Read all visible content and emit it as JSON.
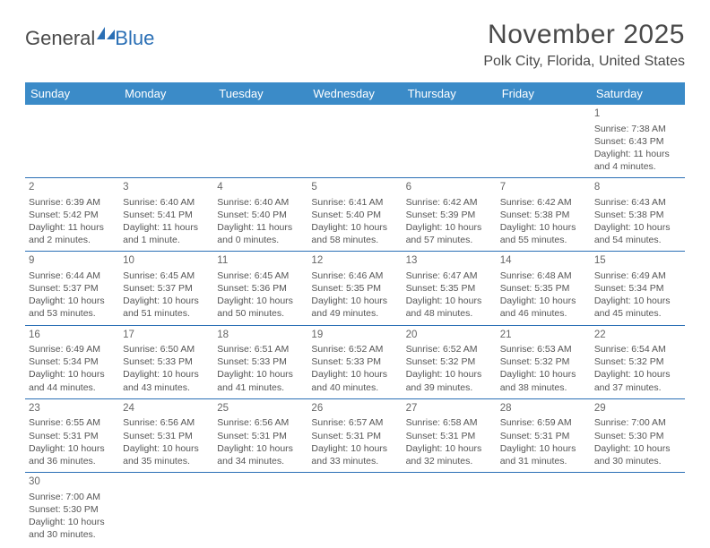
{
  "logo": {
    "text_a": "General",
    "text_b": "Blue"
  },
  "header": {
    "month_title": "November 2025",
    "location": "Polk City, Florida, United States"
  },
  "colors": {
    "header_bg": "#3b8bc8",
    "header_text": "#ffffff",
    "rule": "#2a6fb5",
    "body_text": "#555555"
  },
  "weekdays": [
    "Sunday",
    "Monday",
    "Tuesday",
    "Wednesday",
    "Thursday",
    "Friday",
    "Saturday"
  ],
  "days": {
    "1": {
      "sunrise": "Sunrise: 7:38 AM",
      "sunset": "Sunset: 6:43 PM",
      "day1": "Daylight: 11 hours",
      "day2": "and 4 minutes."
    },
    "2": {
      "sunrise": "Sunrise: 6:39 AM",
      "sunset": "Sunset: 5:42 PM",
      "day1": "Daylight: 11 hours",
      "day2": "and 2 minutes."
    },
    "3": {
      "sunrise": "Sunrise: 6:40 AM",
      "sunset": "Sunset: 5:41 PM",
      "day1": "Daylight: 11 hours",
      "day2": "and 1 minute."
    },
    "4": {
      "sunrise": "Sunrise: 6:40 AM",
      "sunset": "Sunset: 5:40 PM",
      "day1": "Daylight: 11 hours",
      "day2": "and 0 minutes."
    },
    "5": {
      "sunrise": "Sunrise: 6:41 AM",
      "sunset": "Sunset: 5:40 PM",
      "day1": "Daylight: 10 hours",
      "day2": "and 58 minutes."
    },
    "6": {
      "sunrise": "Sunrise: 6:42 AM",
      "sunset": "Sunset: 5:39 PM",
      "day1": "Daylight: 10 hours",
      "day2": "and 57 minutes."
    },
    "7": {
      "sunrise": "Sunrise: 6:42 AM",
      "sunset": "Sunset: 5:38 PM",
      "day1": "Daylight: 10 hours",
      "day2": "and 55 minutes."
    },
    "8": {
      "sunrise": "Sunrise: 6:43 AM",
      "sunset": "Sunset: 5:38 PM",
      "day1": "Daylight: 10 hours",
      "day2": "and 54 minutes."
    },
    "9": {
      "sunrise": "Sunrise: 6:44 AM",
      "sunset": "Sunset: 5:37 PM",
      "day1": "Daylight: 10 hours",
      "day2": "and 53 minutes."
    },
    "10": {
      "sunrise": "Sunrise: 6:45 AM",
      "sunset": "Sunset: 5:37 PM",
      "day1": "Daylight: 10 hours",
      "day2": "and 51 minutes."
    },
    "11": {
      "sunrise": "Sunrise: 6:45 AM",
      "sunset": "Sunset: 5:36 PM",
      "day1": "Daylight: 10 hours",
      "day2": "and 50 minutes."
    },
    "12": {
      "sunrise": "Sunrise: 6:46 AM",
      "sunset": "Sunset: 5:35 PM",
      "day1": "Daylight: 10 hours",
      "day2": "and 49 minutes."
    },
    "13": {
      "sunrise": "Sunrise: 6:47 AM",
      "sunset": "Sunset: 5:35 PM",
      "day1": "Daylight: 10 hours",
      "day2": "and 48 minutes."
    },
    "14": {
      "sunrise": "Sunrise: 6:48 AM",
      "sunset": "Sunset: 5:35 PM",
      "day1": "Daylight: 10 hours",
      "day2": "and 46 minutes."
    },
    "15": {
      "sunrise": "Sunrise: 6:49 AM",
      "sunset": "Sunset: 5:34 PM",
      "day1": "Daylight: 10 hours",
      "day2": "and 45 minutes."
    },
    "16": {
      "sunrise": "Sunrise: 6:49 AM",
      "sunset": "Sunset: 5:34 PM",
      "day1": "Daylight: 10 hours",
      "day2": "and 44 minutes."
    },
    "17": {
      "sunrise": "Sunrise: 6:50 AM",
      "sunset": "Sunset: 5:33 PM",
      "day1": "Daylight: 10 hours",
      "day2": "and 43 minutes."
    },
    "18": {
      "sunrise": "Sunrise: 6:51 AM",
      "sunset": "Sunset: 5:33 PM",
      "day1": "Daylight: 10 hours",
      "day2": "and 41 minutes."
    },
    "19": {
      "sunrise": "Sunrise: 6:52 AM",
      "sunset": "Sunset: 5:33 PM",
      "day1": "Daylight: 10 hours",
      "day2": "and 40 minutes."
    },
    "20": {
      "sunrise": "Sunrise: 6:52 AM",
      "sunset": "Sunset: 5:32 PM",
      "day1": "Daylight: 10 hours",
      "day2": "and 39 minutes."
    },
    "21": {
      "sunrise": "Sunrise: 6:53 AM",
      "sunset": "Sunset: 5:32 PM",
      "day1": "Daylight: 10 hours",
      "day2": "and 38 minutes."
    },
    "22": {
      "sunrise": "Sunrise: 6:54 AM",
      "sunset": "Sunset: 5:32 PM",
      "day1": "Daylight: 10 hours",
      "day2": "and 37 minutes."
    },
    "23": {
      "sunrise": "Sunrise: 6:55 AM",
      "sunset": "Sunset: 5:31 PM",
      "day1": "Daylight: 10 hours",
      "day2": "and 36 minutes."
    },
    "24": {
      "sunrise": "Sunrise: 6:56 AM",
      "sunset": "Sunset: 5:31 PM",
      "day1": "Daylight: 10 hours",
      "day2": "and 35 minutes."
    },
    "25": {
      "sunrise": "Sunrise: 6:56 AM",
      "sunset": "Sunset: 5:31 PM",
      "day1": "Daylight: 10 hours",
      "day2": "and 34 minutes."
    },
    "26": {
      "sunrise": "Sunrise: 6:57 AM",
      "sunset": "Sunset: 5:31 PM",
      "day1": "Daylight: 10 hours",
      "day2": "and 33 minutes."
    },
    "27": {
      "sunrise": "Sunrise: 6:58 AM",
      "sunset": "Sunset: 5:31 PM",
      "day1": "Daylight: 10 hours",
      "day2": "and 32 minutes."
    },
    "28": {
      "sunrise": "Sunrise: 6:59 AM",
      "sunset": "Sunset: 5:31 PM",
      "day1": "Daylight: 10 hours",
      "day2": "and 31 minutes."
    },
    "29": {
      "sunrise": "Sunrise: 7:00 AM",
      "sunset": "Sunset: 5:30 PM",
      "day1": "Daylight: 10 hours",
      "day2": "and 30 minutes."
    },
    "30": {
      "sunrise": "Sunrise: 7:00 AM",
      "sunset": "Sunset: 5:30 PM",
      "day1": "Daylight: 10 hours",
      "day2": "and 30 minutes."
    }
  },
  "layout": [
    [
      null,
      null,
      null,
      null,
      null,
      null,
      "1"
    ],
    [
      "2",
      "3",
      "4",
      "5",
      "6",
      "7",
      "8"
    ],
    [
      "9",
      "10",
      "11",
      "12",
      "13",
      "14",
      "15"
    ],
    [
      "16",
      "17",
      "18",
      "19",
      "20",
      "21",
      "22"
    ],
    [
      "23",
      "24",
      "25",
      "26",
      "27",
      "28",
      "29"
    ],
    [
      "30",
      null,
      null,
      null,
      null,
      null,
      null
    ]
  ]
}
